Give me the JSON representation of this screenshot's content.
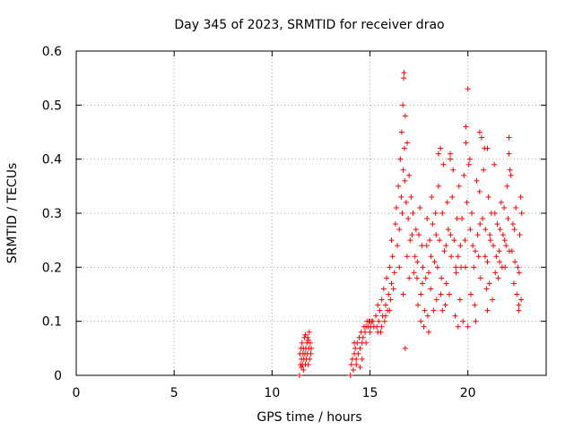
{
  "chart_data": {
    "type": "scatter",
    "title": "Day 345 of 2023, SRMTID for receiver drao",
    "xlabel": "GPS time / hours",
    "ylabel": "SRMTID / TECUs",
    "xlim": [
      0,
      24
    ],
    "ylim": [
      0,
      0.6
    ],
    "xticks": [
      0,
      5,
      10,
      15,
      20
    ],
    "yticks": [
      0,
      0.1,
      0.2,
      0.3,
      0.4,
      0.5,
      0.6
    ],
    "x_tick_labels": [
      "0",
      "5",
      "10",
      "15",
      "20"
    ],
    "y_tick_labels": [
      "0",
      "0.1",
      "0.2",
      "0.3",
      "0.4",
      "0.5",
      "0.6"
    ],
    "grid": true,
    "marker": "+",
    "color": "#ff0000",
    "series": [
      {
        "name": "srmtid",
        "points": [
          [
            11.4,
            0.0
          ],
          [
            14.0,
            0.0
          ],
          [
            11.42,
            0.04
          ],
          [
            11.45,
            0.02
          ],
          [
            11.48,
            0.05
          ],
          [
            11.5,
            0.03
          ],
          [
            11.53,
            0.06
          ],
          [
            11.55,
            0.02
          ],
          [
            11.58,
            0.04
          ],
          [
            11.6,
            0.05
          ],
          [
            11.62,
            0.03
          ],
          [
            11.65,
            0.07
          ],
          [
            11.68,
            0.04
          ],
          [
            11.7,
            0.02
          ],
          [
            11.72,
            0.05
          ],
          [
            11.75,
            0.03
          ],
          [
            11.78,
            0.06
          ],
          [
            11.8,
            0.04
          ],
          [
            11.82,
            0.07
          ],
          [
            11.85,
            0.02
          ],
          [
            11.88,
            0.05
          ],
          [
            11.9,
            0.08
          ],
          [
            11.92,
            0.03
          ],
          [
            11.95,
            0.06
          ],
          [
            11.98,
            0.04
          ],
          [
            12.0,
            0.05
          ],
          [
            11.6,
            0.01
          ],
          [
            11.7,
            0.075
          ],
          [
            11.85,
            0.065
          ],
          [
            11.5,
            0.015
          ],
          [
            14.05,
            0.02
          ],
          [
            14.1,
            0.03
          ],
          [
            14.15,
            0.01
          ],
          [
            14.2,
            0.04
          ],
          [
            14.25,
            0.05
          ],
          [
            14.3,
            0.03
          ],
          [
            14.35,
            0.06
          ],
          [
            14.4,
            0.04
          ],
          [
            14.45,
            0.07
          ],
          [
            14.5,
            0.05
          ],
          [
            14.55,
            0.08
          ],
          [
            14.6,
            0.06
          ],
          [
            14.65,
            0.07
          ],
          [
            14.7,
            0.09
          ],
          [
            14.75,
            0.08
          ],
          [
            14.8,
            0.09
          ],
          [
            14.85,
            0.1
          ],
          [
            14.9,
            0.09
          ],
          [
            14.95,
            0.1
          ],
          [
            15.0,
            0.1
          ],
          [
            15.05,
            0.09
          ],
          [
            15.1,
            0.1
          ],
          [
            15.15,
            0.1
          ],
          [
            15.2,
            0.09
          ],
          [
            14.3,
            0.02
          ],
          [
            14.5,
            0.015
          ],
          [
            14.2,
            0.06
          ],
          [
            14.6,
            0.03
          ],
          [
            14.8,
            0.06
          ],
          [
            15.0,
            0.08
          ],
          [
            15.3,
            0.11
          ],
          [
            15.35,
            0.09
          ],
          [
            15.4,
            0.13
          ],
          [
            15.45,
            0.1
          ],
          [
            15.5,
            0.12
          ],
          [
            15.55,
            0.08
          ],
          [
            15.6,
            0.14
          ],
          [
            15.65,
            0.11
          ],
          [
            15.7,
            0.16
          ],
          [
            15.75,
            0.1
          ],
          [
            15.8,
            0.13
          ],
          [
            15.85,
            0.18
          ],
          [
            15.9,
            0.12
          ],
          [
            15.95,
            0.15
          ],
          [
            16.0,
            0.2
          ],
          [
            16.05,
            0.14
          ],
          [
            16.1,
            0.17
          ],
          [
            16.15,
            0.22
          ],
          [
            16.2,
            0.16
          ],
          [
            16.25,
            0.19
          ],
          [
            15.4,
            0.08
          ],
          [
            15.6,
            0.09
          ],
          [
            15.8,
            0.11
          ],
          [
            16.0,
            0.12
          ],
          [
            16.1,
            0.25
          ],
          [
            16.3,
            0.28
          ],
          [
            16.35,
            0.31
          ],
          [
            16.4,
            0.24
          ],
          [
            16.45,
            0.35
          ],
          [
            16.5,
            0.27
          ],
          [
            16.55,
            0.4
          ],
          [
            16.6,
            0.33
          ],
          [
            16.62,
            0.45
          ],
          [
            16.65,
            0.3
          ],
          [
            16.68,
            0.5
          ],
          [
            16.7,
            0.38
          ],
          [
            16.72,
            0.55
          ],
          [
            16.74,
            0.56
          ],
          [
            16.76,
            0.42
          ],
          [
            16.78,
            0.36
          ],
          [
            16.8,
            0.48
          ],
          [
            16.85,
            0.32
          ],
          [
            16.9,
            0.43
          ],
          [
            16.95,
            0.29
          ],
          [
            17.0,
            0.37
          ],
          [
            17.05,
            0.25
          ],
          [
            17.1,
            0.33
          ],
          [
            16.8,
            0.05
          ],
          [
            16.5,
            0.2
          ],
          [
            16.7,
            0.15
          ],
          [
            16.9,
            0.22
          ],
          [
            17.0,
            0.18
          ],
          [
            17.2,
            0.3
          ],
          [
            17.3,
            0.22
          ],
          [
            17.4,
            0.18
          ],
          [
            17.5,
            0.26
          ],
          [
            17.6,
            0.15
          ],
          [
            17.7,
            0.2
          ],
          [
            17.8,
            0.12
          ],
          [
            17.9,
            0.24
          ],
          [
            18.0,
            0.19
          ],
          [
            18.1,
            0.16
          ],
          [
            18.2,
            0.28
          ],
          [
            18.3,
            0.21
          ],
          [
            18.4,
            0.14
          ],
          [
            18.5,
            0.35
          ],
          [
            18.6,
            0.42
          ],
          [
            18.7,
            0.3
          ],
          [
            18.8,
            0.23
          ],
          [
            18.9,
            0.17
          ],
          [
            19.0,
            0.27
          ],
          [
            19.1,
            0.41
          ],
          [
            19.2,
            0.33
          ],
          [
            19.3,
            0.25
          ],
          [
            19.4,
            0.19
          ],
          [
            19.5,
            0.22
          ],
          [
            19.6,
            0.14
          ],
          [
            19.7,
            0.29
          ],
          [
            19.8,
            0.37
          ],
          [
            19.9,
            0.46
          ],
          [
            20.0,
            0.53
          ],
          [
            20.1,
            0.4
          ],
          [
            20.2,
            0.3
          ],
          [
            20.3,
            0.2
          ],
          [
            20.4,
            0.1
          ],
          [
            20.5,
            0.26
          ],
          [
            20.6,
            0.34
          ],
          [
            20.7,
            0.44
          ],
          [
            20.8,
            0.38
          ],
          [
            20.9,
            0.27
          ],
          [
            21.0,
            0.21
          ],
          [
            21.1,
            0.17
          ],
          [
            21.2,
            0.3
          ],
          [
            21.3,
            0.24
          ],
          [
            21.4,
            0.19
          ],
          [
            21.5,
            0.28
          ],
          [
            21.6,
            0.23
          ],
          [
            21.7,
            0.32
          ],
          [
            21.8,
            0.26
          ],
          [
            21.9,
            0.2
          ],
          [
            22.0,
            0.35
          ],
          [
            22.1,
            0.44
          ],
          [
            22.2,
            0.37
          ],
          [
            22.3,
            0.28
          ],
          [
            22.4,
            0.21
          ],
          [
            22.5,
            0.15
          ],
          [
            22.6,
            0.12
          ],
          [
            22.7,
            0.33
          ],
          [
            17.25,
            0.19
          ],
          [
            17.35,
            0.27
          ],
          [
            17.45,
            0.13
          ],
          [
            17.55,
            0.31
          ],
          [
            17.65,
            0.24
          ],
          [
            17.75,
            0.09
          ],
          [
            17.85,
            0.18
          ],
          [
            17.95,
            0.11
          ],
          [
            18.05,
            0.25
          ],
          [
            18.15,
            0.33
          ],
          [
            18.25,
            0.12
          ],
          [
            18.35,
            0.3
          ],
          [
            18.45,
            0.2
          ],
          [
            18.55,
            0.25
          ],
          [
            18.65,
            0.18
          ],
          [
            18.75,
            0.39
          ],
          [
            18.85,
            0.13
          ],
          [
            18.95,
            0.32
          ],
          [
            19.05,
            0.15
          ],
          [
            19.15,
            0.22
          ],
          [
            19.25,
            0.38
          ],
          [
            19.35,
            0.11
          ],
          [
            19.45,
            0.29
          ],
          [
            19.55,
            0.35
          ],
          [
            19.65,
            0.2
          ],
          [
            19.75,
            0.1
          ],
          [
            19.85,
            0.25
          ],
          [
            19.95,
            0.32
          ],
          [
            20.05,
            0.39
          ],
          [
            20.15,
            0.15
          ],
          [
            20.25,
            0.24
          ],
          [
            20.35,
            0.13
          ],
          [
            20.45,
            0.36
          ],
          [
            20.55,
            0.22
          ],
          [
            20.65,
            0.18
          ],
          [
            20.75,
            0.29
          ],
          [
            20.85,
            0.42
          ],
          [
            20.95,
            0.16
          ],
          [
            21.05,
            0.33
          ],
          [
            21.15,
            0.25
          ],
          [
            21.25,
            0.14
          ],
          [
            21.35,
            0.39
          ],
          [
            21.45,
            0.22
          ],
          [
            21.55,
            0.18
          ],
          [
            21.65,
            0.27
          ],
          [
            21.75,
            0.2
          ],
          [
            21.85,
            0.31
          ],
          [
            21.95,
            0.24
          ],
          [
            22.05,
            0.29
          ],
          [
            22.15,
            0.38
          ],
          [
            22.25,
            0.23
          ],
          [
            22.35,
            0.17
          ],
          [
            22.45,
            0.31
          ],
          [
            22.55,
            0.2
          ],
          [
            22.65,
            0.26
          ],
          [
            22.75,
            0.3
          ],
          [
            17.15,
            0.26
          ],
          [
            17.42,
            0.21
          ],
          [
            17.68,
            0.17
          ],
          [
            17.92,
            0.29
          ],
          [
            18.12,
            0.22
          ],
          [
            18.38,
            0.26
          ],
          [
            18.62,
            0.15
          ],
          [
            18.88,
            0.24
          ],
          [
            19.12,
            0.26
          ],
          [
            19.38,
            0.2
          ],
          [
            19.62,
            0.24
          ],
          [
            19.88,
            0.2
          ],
          [
            20.12,
            0.27
          ],
          [
            20.38,
            0.23
          ],
          [
            20.62,
            0.28
          ],
          [
            20.88,
            0.22
          ],
          [
            21.12,
            0.26
          ],
          [
            21.38,
            0.3
          ],
          [
            21.62,
            0.21
          ],
          [
            21.88,
            0.25
          ],
          [
            22.12,
            0.23
          ],
          [
            22.38,
            0.27
          ],
          [
            22.62,
            0.19
          ],
          [
            22.72,
            0.14
          ],
          [
            18.5,
            0.41
          ],
          [
            19.1,
            0.4
          ],
          [
            19.9,
            0.43
          ],
          [
            20.6,
            0.45
          ],
          [
            21.0,
            0.42
          ],
          [
            22.1,
            0.41
          ],
          [
            18.0,
            0.08
          ],
          [
            19.5,
            0.09
          ],
          [
            20.0,
            0.09
          ],
          [
            21.0,
            0.12
          ],
          [
            22.6,
            0.13
          ],
          [
            17.6,
            0.1
          ],
          [
            18.7,
            0.12
          ]
        ]
      }
    ]
  }
}
